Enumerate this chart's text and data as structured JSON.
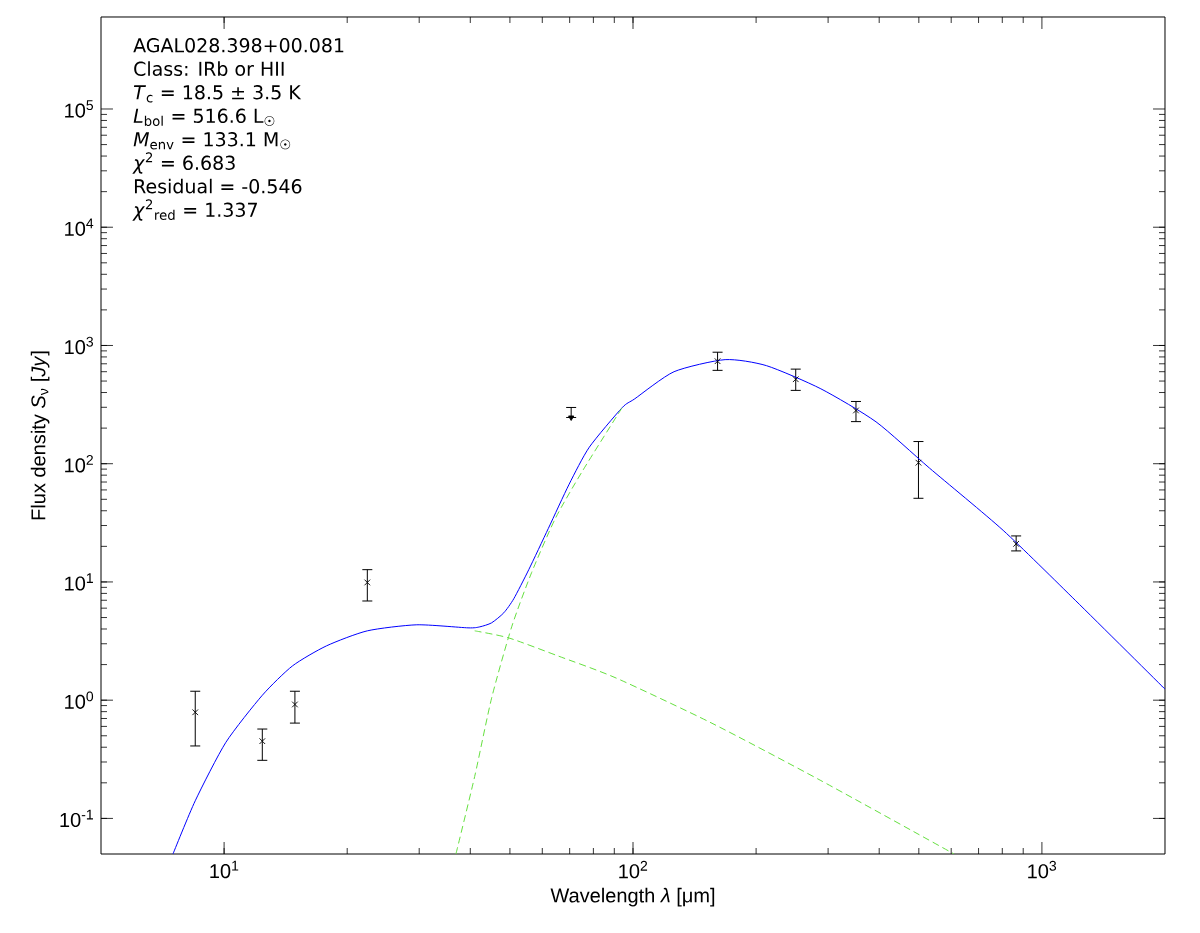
{
  "chart_data": {
    "type": "line",
    "xlabel": "Wavelength *λ* [μm]",
    "ylabel": "Flux density *S*$_{ν}$ [*Jy*]",
    "annotations": [
      "AGAL028.398+00.081",
      "Class: IRb or HII",
      "*T*$_{c}$ = 18.5 ± 3.5 K",
      "*L*$_{bol}$ = 516.6 L$_{☉}$",
      "*M*$_{env}$ = 133.1 M$_{☉}$",
      "*χ*$^{2}$ = 6.683",
      "Residual = -0.546",
      "*χ*$^{2}$$_{red}$ = 1.337"
    ],
    "log": "xy",
    "grid": false,
    "xlim": [
      5,
      2000
    ],
    "ylim": [
      0.05,
      600000
    ],
    "xticks": [
      {
        "value": 10,
        "label": "10$^{1}$"
      },
      {
        "value": 100,
        "label": "10$^{2}$"
      },
      {
        "value": 1000,
        "label": "10$^{3}$"
      }
    ],
    "yticks": [
      {
        "value": 0.1,
        "label": "10$^{-1}$"
      },
      {
        "value": 1,
        "label": "10$^{0}$"
      },
      {
        "value": 10,
        "label": "10$^{1}$"
      },
      {
        "value": 100,
        "label": "10$^{2}$"
      },
      {
        "value": 1000,
        "label": "10$^{3}$"
      },
      {
        "value": 10000,
        "label": "10$^{4}$"
      },
      {
        "value": 100000,
        "label": "10$^{5}$"
      }
    ],
    "series": [
      {
        "type": "scatter",
        "marker": "cross",
        "color": "#000000",
        "x": [
          8.5,
          12.4,
          14.9,
          22.4,
          161,
          250,
          351,
          499,
          865
        ],
        "values": [
          0.79,
          0.45,
          0.92,
          9.9,
          736,
          518,
          282,
          102,
          21
        ],
        "errors": [
          [
            0.41,
            1.19
          ],
          [
            0.31,
            0.57
          ],
          [
            0.64,
            1.19
          ],
          [
            6.9,
            12.7
          ],
          [
            616,
            877
          ],
          [
            417,
            631
          ],
          [
            227,
            336
          ],
          [
            51,
            154
          ],
          [
            18.3,
            24.5
          ]
        ]
      },
      {
        "type": "scatter",
        "marker": "triangle",
        "color": "#000000",
        "x": [
          70.6
        ],
        "values": [
          246
        ],
        "errors": [
          [
            246,
            299
          ]
        ]
      },
      {
        "marker": "none",
        "line_style": "solid",
        "color": "#0000ff",
        "x": [
          7.5,
          8.5,
          10.1,
          12.4,
          14.7,
          17.8,
          22.4,
          29.6,
          39.5,
          42.2,
          45.1,
          48.3,
          51.1,
          55.6,
          62.1,
          69.8,
          78.2,
          94.0,
          101,
          126,
          168,
          212,
          288,
          393,
          531,
          804,
          1210,
          2000
        ],
        "values": [
          0.05,
          0.141,
          0.44,
          1.1,
          1.95,
          2.88,
          3.86,
          4.34,
          4.09,
          4.17,
          4.51,
          5.48,
          7.21,
          12.7,
          28.4,
          67.1,
          138,
          297,
          354,
          600,
          759,
          675,
          430,
          226,
          91.8,
          27.3,
          6.93,
          1.24
        ]
      },
      {
        "marker": "none",
        "line_style": "dashed",
        "color": "#66e040",
        "x": [
          41.0,
          49.7,
          65.7,
          90.9,
          156,
          288,
          610
        ],
        "values": [
          3.86,
          3.36,
          2.36,
          1.54,
          0.638,
          0.209,
          0.05
        ]
      },
      {
        "marker": "none",
        "line_style": "dashed",
        "color": "#66e040",
        "x": [
          36.9,
          41.0,
          45.1,
          50.5,
          56.5,
          64.6,
          75.2,
          94.0
        ],
        "values": [
          0.05,
          0.226,
          1.04,
          4.17,
          12.0,
          34.5,
          86.5,
          297
        ]
      }
    ]
  }
}
